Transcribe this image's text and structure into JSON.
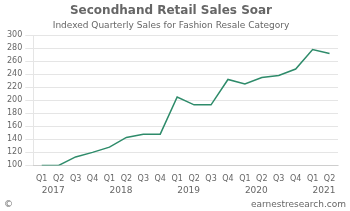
{
  "chart_data": {
    "type": "line",
    "title": "Secondhand Retail Sales Soar",
    "subtitle": "Indexed Quarterly Sales for Fashion Resale Category",
    "categories": [
      "Q1",
      "Q2",
      "Q3",
      "Q4",
      "Q1",
      "Q2",
      "Q3",
      "Q4",
      "Q1",
      "Q2",
      "Q3",
      "Q4",
      "Q1",
      "Q2",
      "Q3",
      "Q4",
      "Q1",
      "Q2"
    ],
    "values": [
      100,
      100,
      113,
      120,
      128,
      143,
      148,
      148,
      205,
      193,
      193,
      232,
      225,
      235,
      238,
      248,
      278,
      272
    ],
    "color": "#2e8b6a",
    "ylim": [
      100,
      300
    ],
    "yticks": [
      100,
      120,
      140,
      160,
      180,
      200,
      220,
      240,
      260,
      280,
      300
    ],
    "grid": true,
    "annotations": [
      {
        "text": "2017",
        "x": 0
      },
      {
        "text": "2018",
        "x": 4
      },
      {
        "text": "2019",
        "x": 8
      },
      {
        "text": "2020",
        "x": 12
      },
      {
        "text": "2021",
        "x": 16
      },
      {
        "text": "©"
      },
      {
        "text": "earnestresearch.com"
      }
    ]
  }
}
